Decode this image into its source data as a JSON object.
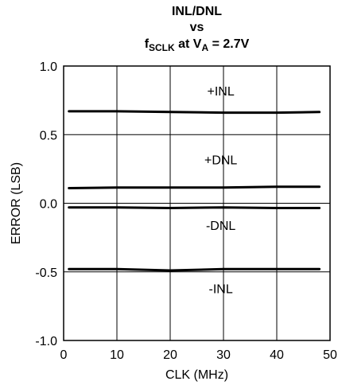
{
  "title": {
    "line1": "INL/DNL",
    "line2": "vs",
    "line3_f": "f",
    "line3_f_sub": "SCLK",
    "line3_mid": " at V",
    "line3_v_sub": "A",
    "line3_end": " = 2.7V"
  },
  "chart_data": {
    "type": "line",
    "xlabel": "CLK (MHz)",
    "ylabel": "ERROR (LSB)",
    "xlim": [
      0,
      50
    ],
    "ylim": [
      -1.0,
      1.0
    ],
    "x_ticks": [
      "0",
      "10",
      "20",
      "30",
      "40",
      "50"
    ],
    "y_ticks": [
      "1.0",
      "0.5",
      "0.0",
      "-0.5",
      "-1.0"
    ],
    "x_tick_values": [
      0,
      10,
      20,
      30,
      40,
      50
    ],
    "y_tick_values": [
      1.0,
      0.5,
      0.0,
      -0.5,
      -1.0
    ],
    "grid": true,
    "series": [
      {
        "name": "+INL",
        "x": [
          1,
          10,
          20,
          30,
          40,
          48
        ],
        "values": [
          0.67,
          0.67,
          0.665,
          0.66,
          0.66,
          0.665
        ]
      },
      {
        "name": "+DNL",
        "x": [
          1,
          10,
          20,
          30,
          40,
          48
        ],
        "values": [
          0.11,
          0.115,
          0.115,
          0.115,
          0.12,
          0.12
        ]
      },
      {
        "name": "-DNL",
        "x": [
          1,
          10,
          20,
          30,
          40,
          48
        ],
        "values": [
          -0.03,
          -0.03,
          -0.035,
          -0.03,
          -0.035,
          -0.035
        ]
      },
      {
        "name": "-INL",
        "x": [
          1,
          10,
          20,
          30,
          40,
          48
        ],
        "values": [
          -0.48,
          -0.48,
          -0.49,
          -0.48,
          -0.48,
          -0.48
        ]
      }
    ],
    "annotations": [
      {
        "text": "+INL",
        "x": 29.5,
        "y": 0.82
      },
      {
        "text": "+DNL",
        "x": 29.5,
        "y": 0.32
      },
      {
        "text": "-DNL",
        "x": 29.5,
        "y": -0.16
      },
      {
        "text": "-INL",
        "x": 29.5,
        "y": -0.62
      }
    ]
  }
}
